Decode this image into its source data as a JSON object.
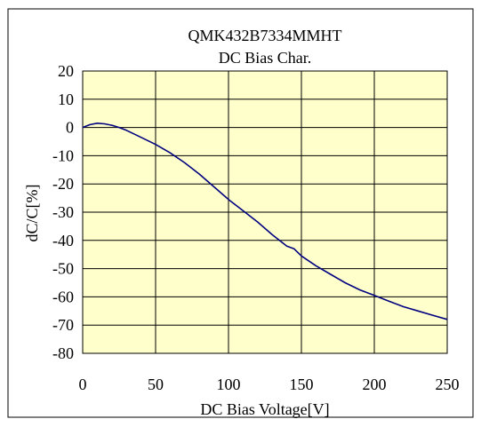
{
  "chart_data": {
    "type": "line",
    "title": "QMK432B7334MMHT",
    "subtitle": "DC Bias Char.",
    "xlabel": "DC Bias Voltage[V]",
    "ylabel": "dC/C[%]",
    "xlim": [
      0,
      250
    ],
    "ylim": [
      -80,
      20
    ],
    "x_ticks": [
      0,
      50,
      100,
      150,
      200,
      250
    ],
    "y_ticks": [
      20,
      10,
      0,
      -10,
      -20,
      -30,
      -40,
      -50,
      -60,
      -70,
      -80
    ],
    "grid": true,
    "legend": "none",
    "colors": {
      "plot_background": "#FFFFCC",
      "line": "#000080",
      "grid": "#000000"
    },
    "series": [
      {
        "x": [
          0,
          5,
          10,
          15,
          20,
          25,
          30,
          40,
          50,
          60,
          70,
          80,
          90,
          100,
          110,
          120,
          130,
          140,
          145,
          150,
          160,
          170,
          180,
          190,
          200,
          210,
          220,
          230,
          240,
          250
        ],
        "values": [
          0,
          1,
          1.5,
          1.3,
          0.8,
          0,
          -1,
          -3.5,
          -6,
          -9,
          -12.5,
          -16.5,
          -21,
          -25.5,
          -29.5,
          -33.5,
          -38,
          -42,
          -43,
          -45.5,
          -49,
          -52,
          -55,
          -57.5,
          -59.5,
          -61.5,
          -63.5,
          -65,
          -66.5,
          -68
        ]
      }
    ]
  }
}
